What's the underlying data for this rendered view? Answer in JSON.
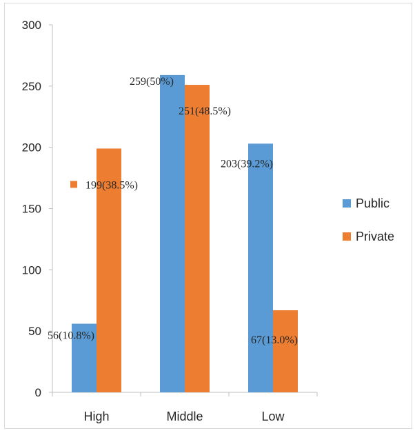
{
  "chart_data": {
    "type": "bar",
    "categories": [
      "High",
      "Middle",
      "Low"
    ],
    "series": [
      {
        "name": "Public",
        "values": [
          56,
          259,
          203
        ],
        "labels": [
          "56(10.8%)",
          "259(50%)",
          "203(39.2%)"
        ]
      },
      {
        "name": "Private",
        "values": [
          199,
          251,
          67
        ],
        "labels": [
          "199(38.5%)",
          "251(48.5%)",
          "67(13.0%)"
        ]
      }
    ],
    "yticks": [
      "0",
      "50",
      "100",
      "150",
      "200",
      "250",
      "300"
    ],
    "ylim": [
      0,
      300
    ],
    "title": "",
    "xlabel": "",
    "ylabel": "",
    "grid": false,
    "legend_position": "right"
  },
  "colors": {
    "Public": "#5b9bd5",
    "Private": "#ed7d31",
    "axis": "#bfbfbf"
  }
}
